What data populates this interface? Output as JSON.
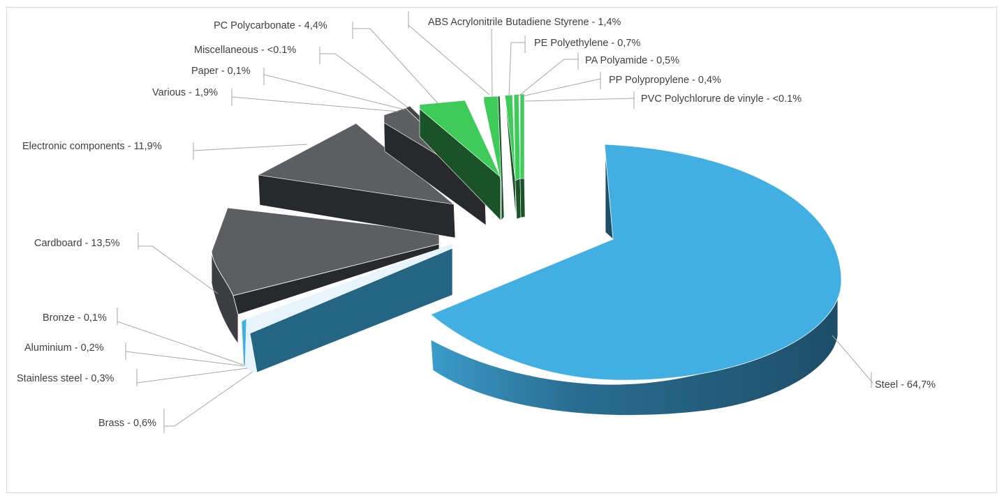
{
  "chart_data": {
    "type": "pie",
    "style": "3d-exploded",
    "title": "",
    "colors": {
      "steel": "#41afe2",
      "steel_side": "#1d4e68",
      "metals": "#41afe2",
      "metals_side": "#236582",
      "dark_top": "#5d5e62",
      "dark_side": "#28292c",
      "plastics_top": "#3fcb5a",
      "plastics_side": "#1b5328"
    },
    "slices": [
      {
        "label": "Steel - 64,7%",
        "name": "Steel",
        "value": 64.7,
        "group": "metal"
      },
      {
        "label": "PVC Polychlorure de vinyle - <0.1%",
        "name": "PVC Polychlorure de vinyle",
        "value": 0.05,
        "group": "plastic"
      },
      {
        "label": "PP Polypropylene - 0,4%",
        "name": "PP Polypropylene",
        "value": 0.4,
        "group": "plastic"
      },
      {
        "label": "PA Polyamide - 0,5%",
        "name": "PA Polyamide",
        "value": 0.5,
        "group": "plastic"
      },
      {
        "label": "PE Polyethylene - 0,7%",
        "name": "PE Polyethylene",
        "value": 0.7,
        "group": "plastic"
      },
      {
        "label": "ABS Acrylonitrile Butadiene Styrene - 1,4%",
        "name": "ABS Acrylonitrile Butadiene Styrene",
        "value": 1.4,
        "group": "plastic"
      },
      {
        "label": "PC Polycarbonate - 4,4%",
        "name": "PC Polycarbonate",
        "value": 4.4,
        "group": "plastic"
      },
      {
        "label": "Miscellaneous - <0.1%",
        "name": "Miscellaneous",
        "value": 0.05,
        "group": "other"
      },
      {
        "label": "Paper - 0,1%",
        "name": "Paper",
        "value": 0.1,
        "group": "other"
      },
      {
        "label": "Various - 1,9%",
        "name": "Various",
        "value": 1.9,
        "group": "other"
      },
      {
        "label": "Electronic components - 11,9%",
        "name": "Electronic components",
        "value": 11.9,
        "group": "other"
      },
      {
        "label": "Cardboard - 13,5%",
        "name": "Cardboard",
        "value": 13.5,
        "group": "other"
      },
      {
        "label": "Bronze - 0,1%",
        "name": "Bronze",
        "value": 0.1,
        "group": "metal"
      },
      {
        "label": "Aluminium - 0,2%",
        "name": "Aluminium",
        "value": 0.2,
        "group": "metal"
      },
      {
        "label": "Stainless steel - 0,3%",
        "name": "Stainless steel",
        "value": 0.3,
        "group": "metal"
      },
      {
        "label": "Brass - 0,6%",
        "name": "Brass",
        "value": 0.6,
        "group": "metal"
      }
    ],
    "legend": "none"
  }
}
